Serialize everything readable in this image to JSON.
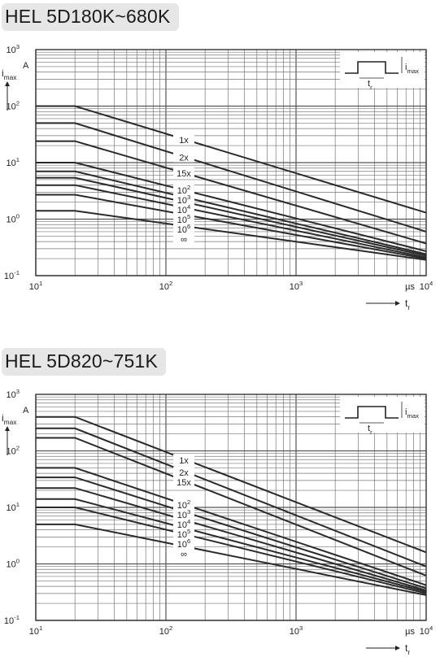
{
  "chart_data": [
    {
      "type": "line",
      "title": "HEL 5D180K~680K",
      "xscale": "log",
      "yscale": "log",
      "xlim": [
        10,
        10000
      ],
      "ylim": [
        0.1,
        1000
      ],
      "xticks": [
        {
          "value": 10,
          "base": "10",
          "exp": "1"
        },
        {
          "value": 100,
          "base": "10",
          "exp": "2"
        },
        {
          "value": 1000,
          "base": "10",
          "exp": "3"
        },
        {
          "value": 10000,
          "base": "10",
          "exp": "4"
        }
      ],
      "yticks": [
        {
          "value": 0.1,
          "base": "10",
          "exp": "-1"
        },
        {
          "value": 1,
          "base": "10",
          "exp": "0"
        },
        {
          "value": 10,
          "base": "10",
          "exp": "1"
        },
        {
          "value": 100,
          "base": "10",
          "exp": "2"
        },
        {
          "value": 1000,
          "base": "10",
          "exp": "3"
        }
      ],
      "xlabel": {
        "main": "t",
        "sub": "r"
      },
      "xunit": "µs",
      "ylabel": {
        "main": "i",
        "sub": "max"
      },
      "yunit": "A",
      "grid": true,
      "inset": {
        "t_label": {
          "main": "t",
          "sub": "r"
        },
        "i_label": {
          "main": "i",
          "sub": "max"
        }
      },
      "series": [
        {
          "name": "1x",
          "label": {
            "base": "1x",
            "exp": ""
          },
          "x": [
            10,
            20,
            10000
          ],
          "y": [
            100,
            100,
            1.3
          ]
        },
        {
          "name": "2x",
          "label": {
            "base": "2x",
            "exp": ""
          },
          "x": [
            10,
            20,
            10000
          ],
          "y": [
            50,
            50,
            0.6
          ]
        },
        {
          "name": "15x",
          "label": {
            "base": "15x",
            "exp": ""
          },
          "x": [
            10,
            20,
            10000
          ],
          "y": [
            24,
            24,
            0.37
          ]
        },
        {
          "name": "10^2",
          "label": {
            "base": "10",
            "exp": "2"
          },
          "x": [
            10,
            20,
            10000
          ],
          "y": [
            10,
            10,
            0.27
          ]
        },
        {
          "name": "10^3",
          "label": {
            "base": "10",
            "exp": "3"
          },
          "x": [
            10,
            20,
            10000
          ],
          "y": [
            7,
            7,
            0.24
          ]
        },
        {
          "name": "10^4",
          "label": {
            "base": "10",
            "exp": "4"
          },
          "x": [
            10,
            20,
            10000
          ],
          "y": [
            5.4,
            5.4,
            0.225
          ]
        },
        {
          "name": "10^5",
          "label": {
            "base": "10",
            "exp": "5"
          },
          "x": [
            10,
            20,
            10000
          ],
          "y": [
            4,
            4,
            0.21
          ]
        },
        {
          "name": "10^6",
          "label": {
            "base": "10",
            "exp": "6"
          },
          "x": [
            10,
            20,
            10000
          ],
          "y": [
            2.7,
            2.7,
            0.2
          ]
        },
        {
          "name": "∞",
          "label": {
            "base": "∞",
            "exp": ""
          },
          "x": [
            10,
            20,
            10000
          ],
          "y": [
            1.4,
            1.4,
            0.19
          ]
        }
      ]
    },
    {
      "type": "line",
      "title": "HEL 5D820~751K",
      "xscale": "log",
      "yscale": "log",
      "xlim": [
        10,
        10000
      ],
      "ylim": [
        0.1,
        1000
      ],
      "xticks": [
        {
          "value": 10,
          "base": "10",
          "exp": "1"
        },
        {
          "value": 100,
          "base": "10",
          "exp": "2"
        },
        {
          "value": 1000,
          "base": "10",
          "exp": "3"
        },
        {
          "value": 10000,
          "base": "10",
          "exp": "4"
        }
      ],
      "yticks": [
        {
          "value": 0.1,
          "base": "10",
          "exp": "-1"
        },
        {
          "value": 1,
          "base": "10",
          "exp": "0"
        },
        {
          "value": 10,
          "base": "10",
          "exp": "1"
        },
        {
          "value": 100,
          "base": "10",
          "exp": "2"
        },
        {
          "value": 1000,
          "base": "10",
          "exp": "3"
        }
      ],
      "xlabel": {
        "main": "t",
        "sub": "r"
      },
      "xunit": "µs",
      "ylabel": {
        "main": "i",
        "sub": "max"
      },
      "yunit": "A",
      "grid": true,
      "inset": {
        "t_label": {
          "main": "t",
          "sub": "r"
        },
        "i_label": {
          "main": "i",
          "sub": "max"
        }
      },
      "series": [
        {
          "name": "1x",
          "label": {
            "base": "1x",
            "exp": ""
          },
          "x": [
            10,
            20,
            10000
          ],
          "y": [
            400,
            400,
            1.6
          ]
        },
        {
          "name": "2x",
          "label": {
            "base": "2x",
            "exp": ""
          },
          "x": [
            10,
            20,
            10000
          ],
          "y": [
            250,
            250,
            0.9
          ]
        },
        {
          "name": "15x",
          "label": {
            "base": "15x",
            "exp": ""
          },
          "x": [
            10,
            20,
            10000
          ],
          "y": [
            170,
            170,
            0.62
          ]
        },
        {
          "name": "10^2",
          "label": {
            "base": "10",
            "exp": "2"
          },
          "x": [
            10,
            20,
            10000
          ],
          "y": [
            50,
            50,
            0.42
          ]
        },
        {
          "name": "10^3",
          "label": {
            "base": "10",
            "exp": "3"
          },
          "x": [
            10,
            20,
            10000
          ],
          "y": [
            34,
            34,
            0.37
          ]
        },
        {
          "name": "10^4",
          "label": {
            "base": "10",
            "exp": "4"
          },
          "x": [
            10,
            20,
            10000
          ],
          "y": [
            22,
            22,
            0.34
          ]
        },
        {
          "name": "10^5",
          "label": {
            "base": "10",
            "exp": "5"
          },
          "x": [
            10,
            20,
            10000
          ],
          "y": [
            14,
            14,
            0.32
          ]
        },
        {
          "name": "10^6",
          "label": {
            "base": "10",
            "exp": "6"
          },
          "x": [
            10,
            20,
            10000
          ],
          "y": [
            10,
            10,
            0.3
          ]
        },
        {
          "name": "∞",
          "label": {
            "base": "∞",
            "exp": ""
          },
          "x": [
            10,
            20,
            10000
          ],
          "y": [
            5,
            5,
            0.28
          ]
        }
      ]
    }
  ]
}
